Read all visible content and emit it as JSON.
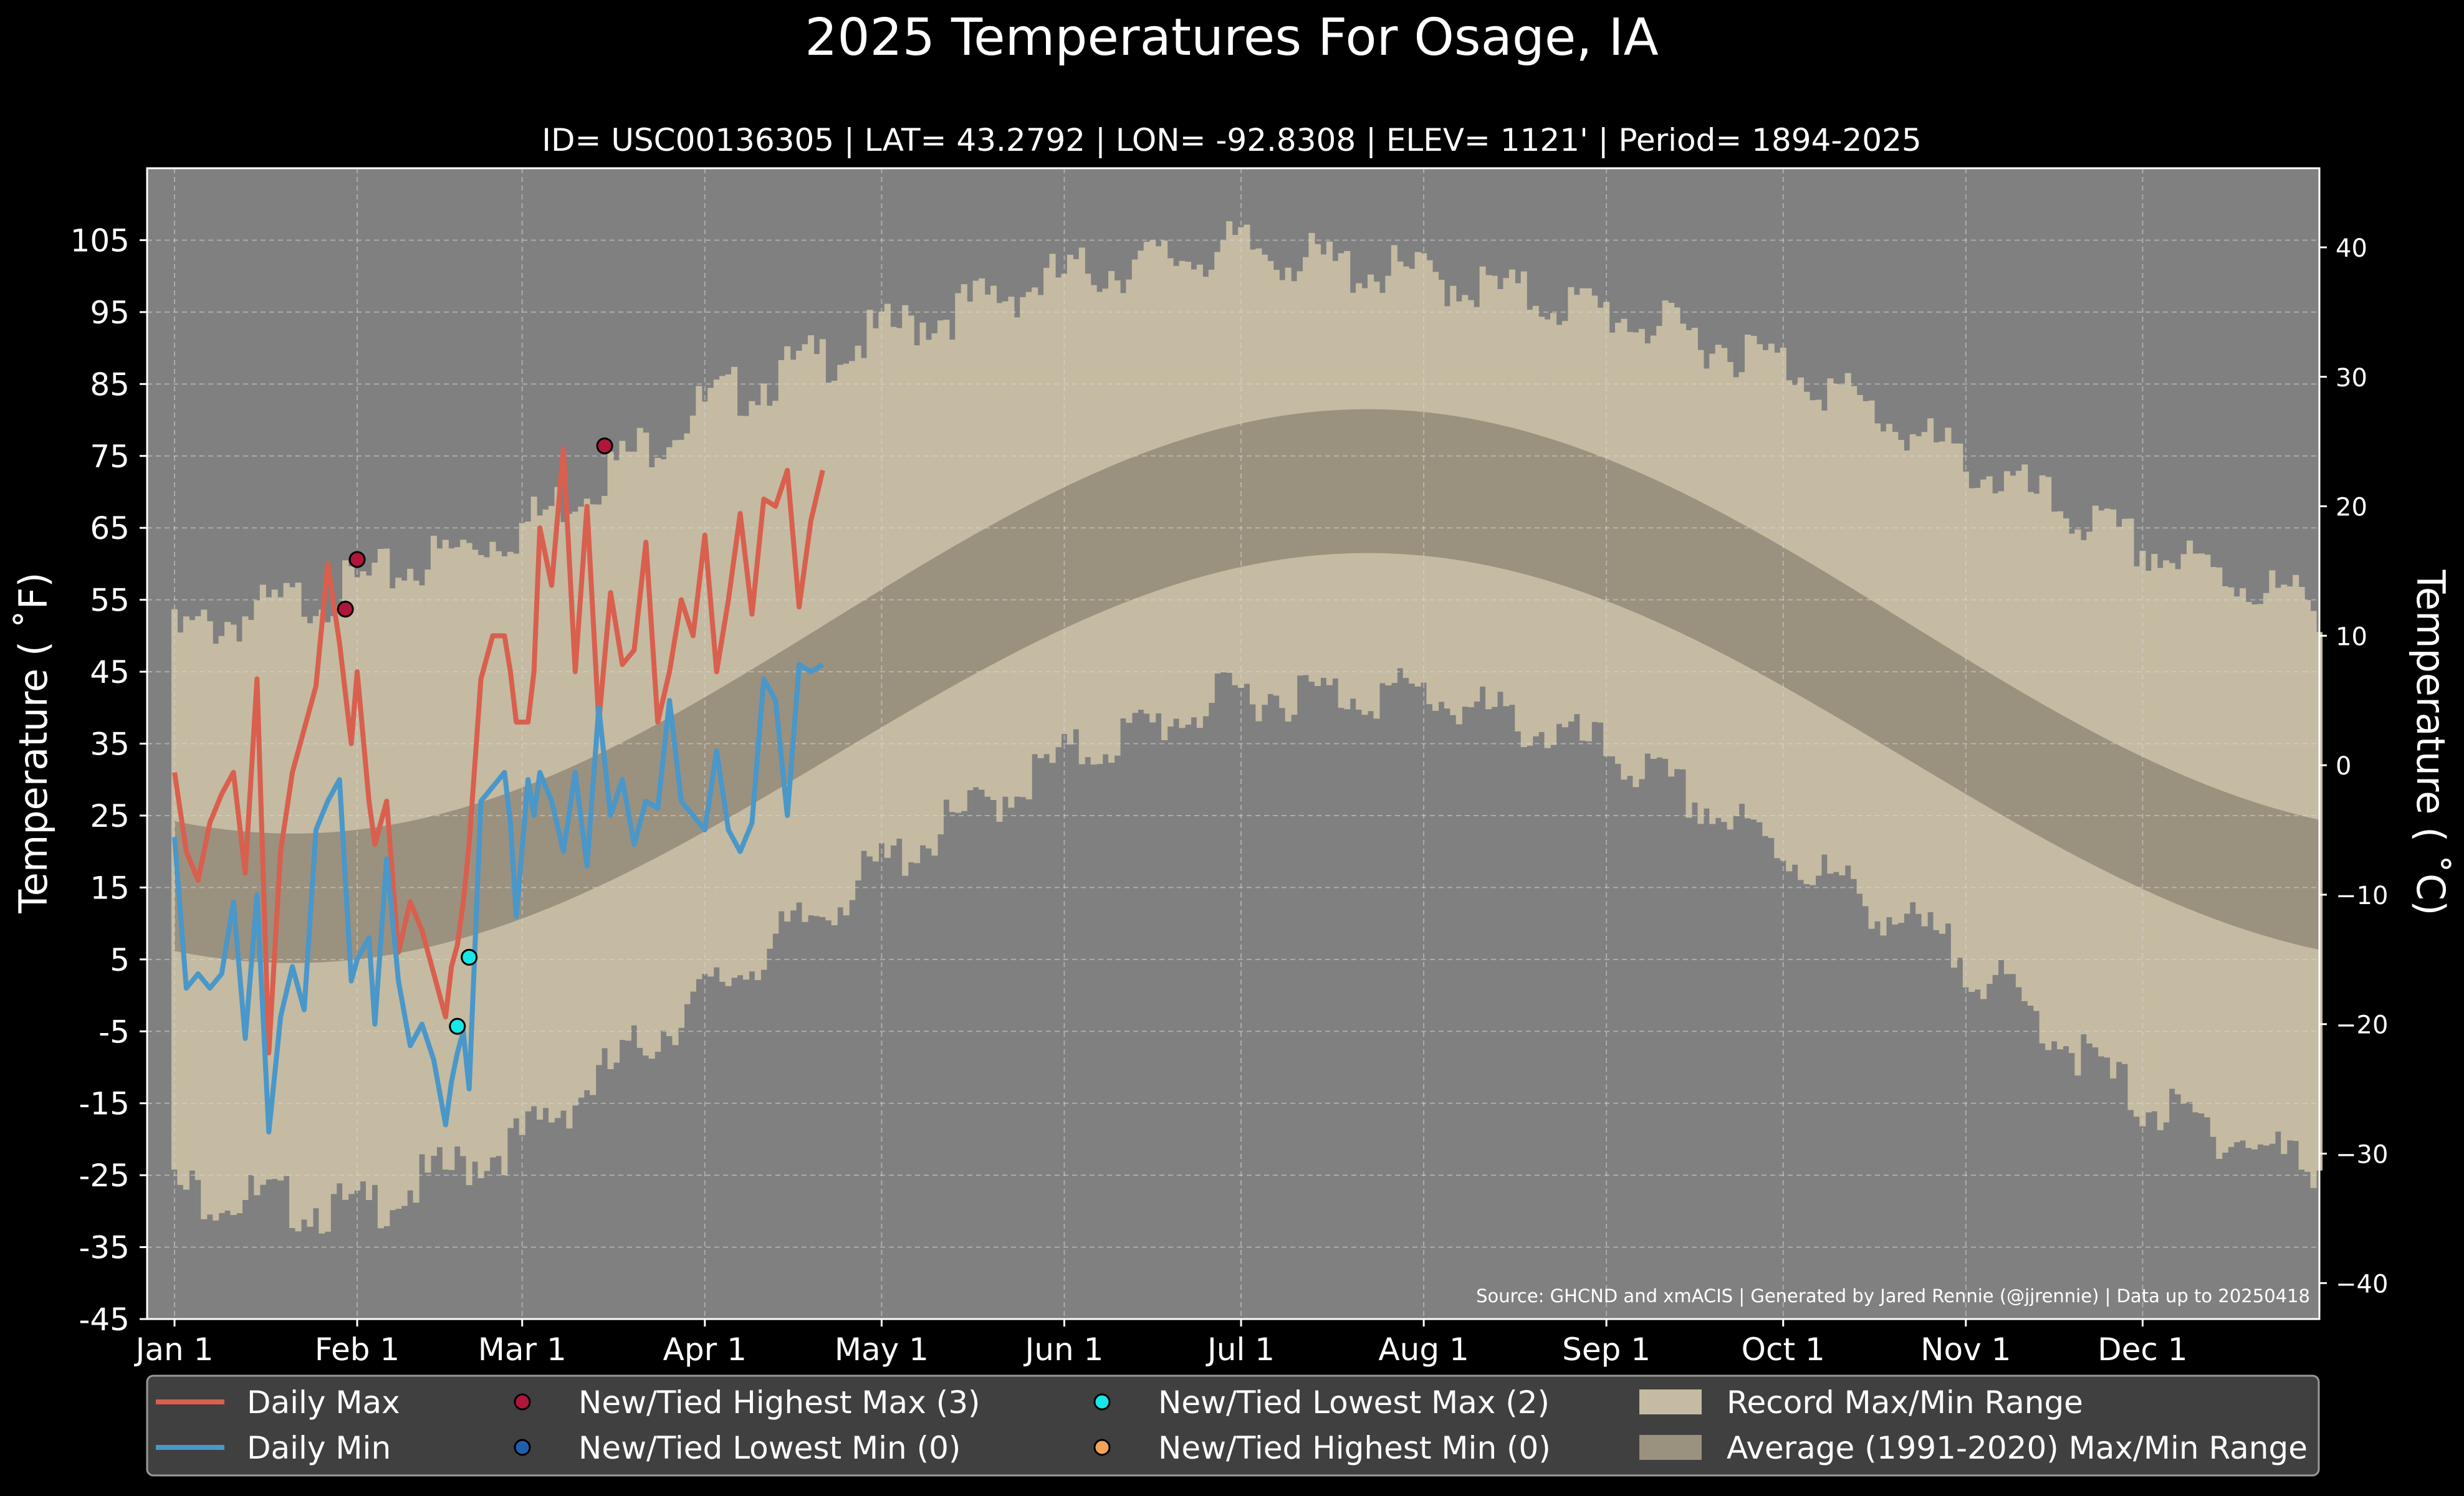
{
  "colors": {
    "background": "#000000",
    "plot_bg": "#808080",
    "record_range": "#c4bba2",
    "normal_range": "#9b917f",
    "daily_max": "#d95f4e",
    "daily_min": "#4a97c9",
    "new_highest_max": "#b0163a",
    "new_lowest_min": "#1f5fb0",
    "new_lowest_max": "#19e6e6",
    "new_highest_min": "#f0a35a",
    "legend_bg": "#404040"
  },
  "chart_data": {
    "type": "line",
    "title": "2025 Temperatures For Osage, IA",
    "subtitle": "ID= USC00136305 | LAT= 43.2792 | LON= -92.8308 | ELEV= 1121' | Period= 1894-2025",
    "ylabel_left": "Temperature ($^\\circ$F)",
    "ylabel_left_display": "Temperature ( ˚F)",
    "ylabel_right_display": "Temperature ( ˚C)",
    "source": "Source: GHCND and xmACIS | Generated by Jared Rennie (@jjrennie) | Data up to 20250418",
    "xlim": [
      0,
      364
    ],
    "ylim": [
      -45,
      115
    ],
    "yticks_f": [
      "105",
      "95",
      "85",
      "75",
      "65",
      "55",
      "45",
      "35",
      "25",
      "15",
      "5",
      "-5",
      "-15",
      "-25",
      "-35",
      "-45"
    ],
    "yticks_c": [
      "40",
      "30",
      "20",
      "10",
      "0",
      "−10",
      "−20",
      "−30",
      "−40"
    ],
    "xtick_labels": [
      "Jan 1",
      "Feb 1",
      "Mar 1",
      "Apr 1",
      "May 1",
      "Jun 1",
      "Jul 1",
      "Aug 1",
      "Sep 1",
      "Oct 1",
      "Nov 1",
      "Dec 1"
    ],
    "xtick_days": [
      0,
      31,
      59,
      90,
      120,
      151,
      181,
      212,
      243,
      273,
      304,
      334
    ],
    "grid": true,
    "legend_position": "bottom",
    "normal_range": {
      "mean": 42.5,
      "amplitude": 29,
      "half_width_jan": 9,
      "half_width_jul": 10,
      "coldest_day": 20
    },
    "record_max_profile": {
      "doy": [
        0,
        31,
        59,
        90,
        120,
        151,
        181,
        200,
        212,
        243,
        273,
        304,
        334,
        364
      ],
      "values": [
        50,
        57,
        65,
        82,
        92,
        100,
        104,
        101,
        100,
        95,
        88,
        74,
        62,
        54
      ]
    },
    "record_min_profile": {
      "doy": [
        0,
        31,
        59,
        90,
        120,
        151,
        181,
        212,
        243,
        273,
        304,
        334,
        364
      ],
      "values": [
        -27,
        -30,
        -20,
        0,
        18,
        33,
        42,
        42,
        34,
        20,
        5,
        -15,
        -24
      ]
    },
    "series": [
      {
        "name": "Daily Max",
        "x": [
          0,
          2,
          4,
          6,
          8,
          10,
          12,
          14,
          16,
          18,
          20,
          22,
          24,
          26,
          28,
          30,
          31,
          33,
          34,
          36,
          38,
          40,
          42,
          44,
          46,
          47,
          48,
          49,
          50,
          52,
          54,
          56,
          57,
          58,
          60,
          61,
          62,
          64,
          66,
          68,
          70,
          72,
          74,
          76,
          78,
          80,
          82,
          84,
          86,
          88,
          90,
          92,
          94,
          96,
          98,
          100,
          102,
          104,
          106,
          108,
          110
        ],
        "y": [
          31,
          20,
          16,
          24,
          28,
          31,
          17,
          44,
          -8,
          20,
          31,
          37,
          43,
          60,
          49,
          35,
          45,
          27,
          21,
          27,
          6,
          13,
          9,
          3,
          -3,
          4,
          7,
          13,
          21,
          44,
          50,
          50,
          45,
          38,
          38,
          45,
          65,
          57,
          76,
          45,
          68,
          38,
          56,
          46,
          48,
          63,
          38,
          45,
          55,
          50,
          64,
          45,
          55,
          67,
          53,
          69,
          68,
          73,
          54,
          66,
          73
        ]
      },
      {
        "name": "Daily Min",
        "x": [
          0,
          2,
          4,
          6,
          8,
          10,
          12,
          14,
          16,
          18,
          20,
          22,
          24,
          26,
          28,
          30,
          31,
          33,
          34,
          36,
          38,
          40,
          42,
          44,
          46,
          47,
          48,
          49,
          50,
          52,
          54,
          56,
          57,
          58,
          60,
          61,
          62,
          64,
          66,
          68,
          70,
          72,
          74,
          76,
          78,
          80,
          82,
          84,
          86,
          88,
          90,
          92,
          94,
          96,
          98,
          100,
          102,
          104,
          106,
          108,
          110
        ],
        "y": [
          22,
          1,
          3,
          1,
          3,
          13,
          -6,
          14,
          -19,
          -3,
          4,
          -2,
          23,
          27,
          30,
          2,
          5,
          8,
          -4,
          19,
          2,
          -7,
          -4,
          -9,
          -18,
          -12,
          -8,
          -5,
          -13,
          27,
          29,
          31,
          24,
          11,
          30,
          25,
          31,
          27,
          20,
          31,
          18,
          40,
          25,
          30,
          21,
          27,
          26,
          41,
          27,
          25,
          23,
          34,
          23,
          20,
          24,
          44,
          41,
          25,
          46,
          45,
          46
        ]
      },
      {
        "name": "New/Tied Highest Max (3)",
        "x": [
          29,
          31,
          73
        ],
        "y": [
          53.7,
          60.6,
          76.4
        ]
      },
      {
        "name": "New/Tied Lowest Min (0)",
        "x": [],
        "y": []
      },
      {
        "name": "New/Tied Lowest Max (2)",
        "x": [
          48,
          50
        ],
        "y": [
          -4.3,
          5.3
        ]
      },
      {
        "name": "New/Tied Highest Min (0)",
        "x": [],
        "y": []
      },
      {
        "name": "Record Max/Min Range"
      },
      {
        "name": "Average (1991-2020) Max/Min Range"
      }
    ]
  }
}
